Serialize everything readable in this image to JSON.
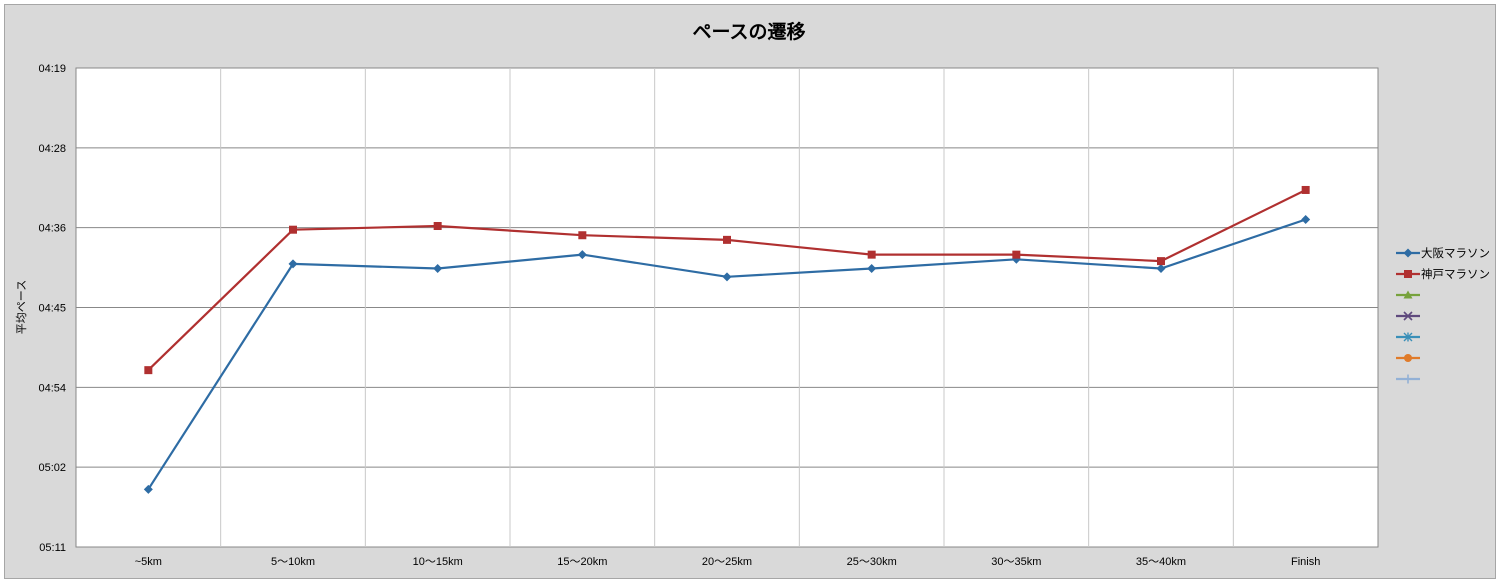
{
  "chart_data": {
    "type": "line",
    "title": "ペースの遷移",
    "ylabel": "平均ペース",
    "xlabel": "",
    "categories": [
      "~5km",
      "5～10km",
      "10～15km",
      "15～20km",
      "20～25km",
      "25～30km",
      "30～35km",
      "35～40km",
      "Finish"
    ],
    "yticks": [
      "04:19",
      "04:28",
      "04:36",
      "04:45",
      "04:54",
      "05:02",
      "05:11"
    ],
    "ylim_seconds": [
      259.2,
      311.04
    ],
    "y_inverted": true,
    "grid": true,
    "legend_position": "right",
    "series": [
      {
        "name": "大阪マラソン",
        "color": "#2e6ca4",
        "marker": "diamond",
        "values_seconds": [
          304.8,
          280.4,
          280.9,
          279.4,
          281.8,
          280.9,
          279.9,
          280.9,
          275.6
        ]
      },
      {
        "name": "神戸マラソン",
        "color": "#b03030",
        "marker": "square",
        "values_seconds": [
          291.9,
          276.7,
          276.3,
          277.3,
          277.8,
          279.4,
          279.4,
          280.1,
          272.4
        ]
      },
      {
        "name": "",
        "color": "#77a23c",
        "marker": "triangle",
        "values_seconds": []
      },
      {
        "name": "",
        "color": "#5f4a7e",
        "marker": "x",
        "values_seconds": []
      },
      {
        "name": "",
        "color": "#3a8fb8",
        "marker": "asterisk",
        "values_seconds": []
      },
      {
        "name": "",
        "color": "#e07b2a",
        "marker": "circle",
        "values_seconds": []
      },
      {
        "name": "",
        "color": "#93b1d6",
        "marker": "plus",
        "values_seconds": []
      }
    ]
  }
}
